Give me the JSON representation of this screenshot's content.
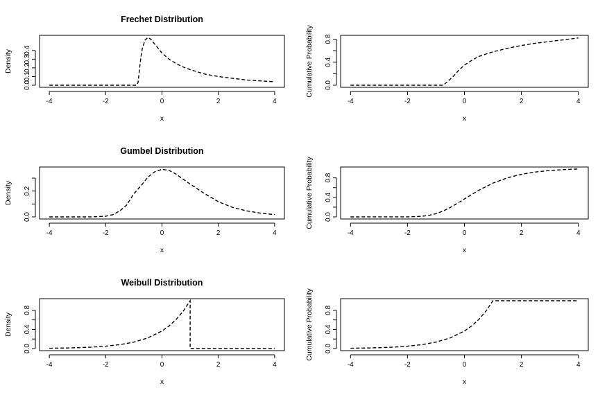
{
  "chart_data": [
    {
      "type": "line",
      "title": "Frechet Distribution",
      "xlabel": "x",
      "ylabel": "Density",
      "xlim": [
        -4,
        4
      ],
      "ylim": [
        0,
        0.55
      ],
      "x_ticks": [
        "-4",
        "-2",
        "0",
        "2",
        "4"
      ],
      "y_ticks": [
        "0.0",
        "0.1",
        "0.2",
        "0.3",
        "0.4"
      ],
      "x_ticks_values": [
        -4,
        -2,
        0,
        2,
        4
      ],
      "y_ticks_values": [
        0,
        0.1,
        0.2,
        0.3,
        0.4
      ],
      "series": [
        {
          "x": [
            -4,
            -0.9,
            -0.85,
            -0.8,
            -0.75,
            -0.7,
            -0.6,
            -0.5,
            -0.4,
            -0.3,
            -0.2,
            -0.1,
            0,
            0.25,
            0.5,
            0.75,
            1,
            1.5,
            2,
            2.5,
            3,
            3.5,
            4
          ],
          "y": [
            0,
            0,
            0.03,
            0.18,
            0.32,
            0.42,
            0.52,
            0.55,
            0.53,
            0.49,
            0.45,
            0.41,
            0.37,
            0.3,
            0.25,
            0.21,
            0.18,
            0.13,
            0.1,
            0.08,
            0.06,
            0.05,
            0.04
          ]
        }
      ]
    },
    {
      "type": "line",
      "title": "",
      "xlabel": "x",
      "ylabel": "Cumulative Probability",
      "xlim": [
        -4,
        4
      ],
      "ylim": [
        0,
        0.83
      ],
      "x_ticks": [
        "-4",
        "-2",
        "0",
        "2",
        "4"
      ],
      "y_ticks": [
        "0.0",
        "0.4",
        "0.8"
      ],
      "y_ticks_minor": [
        0.2,
        0.6
      ],
      "x_ticks_values": [
        -4,
        -2,
        0,
        2,
        4
      ],
      "y_ticks_values": [
        0,
        0.4,
        0.8
      ],
      "series": [
        {
          "x": [
            -4,
            -0.75,
            -0.6,
            -0.4,
            -0.2,
            0,
            0.25,
            0.5,
            1,
            1.5,
            2,
            2.5,
            3,
            3.5,
            4
          ],
          "y": [
            0,
            0,
            0.06,
            0.15,
            0.26,
            0.35,
            0.43,
            0.5,
            0.58,
            0.64,
            0.69,
            0.73,
            0.76,
            0.79,
            0.82
          ]
        }
      ]
    },
    {
      "type": "line",
      "title": "Gumbel Distribution",
      "xlabel": "x",
      "ylabel": "Density",
      "xlim": [
        -4,
        4
      ],
      "ylim": [
        0,
        0.37
      ],
      "x_ticks": [
        "-4",
        "-2",
        "0",
        "2",
        "4"
      ],
      "y_ticks": [
        "0.0",
        "0.2"
      ],
      "y_ticks_minor": [
        0.1,
        0.3
      ],
      "x_ticks_values": [
        -4,
        -2,
        0,
        2,
        4
      ],
      "y_ticks_values": [
        0,
        0.2
      ],
      "series": [
        {
          "x": [
            -4,
            -3,
            -2.5,
            -2,
            -1.75,
            -1.5,
            -1.25,
            -1,
            -0.75,
            -0.5,
            -0.25,
            0,
            0.25,
            0.5,
            0.75,
            1,
            1.5,
            2,
            2.5,
            3,
            3.5,
            4
          ],
          "y": [
            0,
            0,
            0.0001,
            0.005,
            0.017,
            0.046,
            0.093,
            0.179,
            0.24,
            0.308,
            0.35,
            0.368,
            0.36,
            0.331,
            0.292,
            0.254,
            0.182,
            0.118,
            0.074,
            0.047,
            0.029,
            0.018
          ]
        }
      ]
    },
    {
      "type": "line",
      "title": "",
      "xlabel": "x",
      "ylabel": "Cumulative Probability",
      "xlim": [
        -4,
        4
      ],
      "ylim": [
        0,
        0.98
      ],
      "x_ticks": [
        "-4",
        "-2",
        "0",
        "2",
        "4"
      ],
      "y_ticks": [
        "0.0",
        "0.4",
        "0.8"
      ],
      "y_ticks_minor": [
        0.2,
        0.6
      ],
      "x_ticks_values": [
        -4,
        -2,
        0,
        2,
        4
      ],
      "y_ticks_values": [
        0,
        0.4,
        0.8
      ],
      "series": [
        {
          "x": [
            -4,
            -2,
            -1.5,
            -1.25,
            -1,
            -0.75,
            -0.5,
            -0.25,
            0,
            0.5,
            1,
            1.5,
            2,
            2.5,
            3,
            3.5,
            4
          ],
          "y": [
            0,
            0.001,
            0.012,
            0.031,
            0.066,
            0.12,
            0.192,
            0.278,
            0.368,
            0.545,
            0.692,
            0.8,
            0.873,
            0.921,
            0.951,
            0.97,
            0.982
          ]
        }
      ]
    },
    {
      "type": "line",
      "title": "Weibull Distribution",
      "xlabel": "x",
      "ylabel": "Density",
      "xlim": [
        -4,
        4
      ],
      "ylim": [
        0,
        1
      ],
      "x_ticks": [
        "-4",
        "-2",
        "0",
        "2",
        "4"
      ],
      "y_ticks": [
        "0.0",
        "0.4",
        "0.8"
      ],
      "y_ticks_minor": [
        0.2,
        0.6
      ],
      "x_ticks_values": [
        -4,
        -2,
        0,
        2,
        4
      ],
      "y_ticks_values": [
        0,
        0.4,
        0.8
      ],
      "series": [
        {
          "x": [
            -4,
            -3.5,
            -3,
            -2.5,
            -2,
            -1.5,
            -1,
            -0.5,
            0,
            0.25,
            0.5,
            0.75,
            1,
            1,
            2,
            3,
            4
          ],
          "y": [
            0.007,
            0.011,
            0.018,
            0.03,
            0.05,
            0.082,
            0.135,
            0.223,
            0.368,
            0.472,
            0.607,
            0.779,
            1.0,
            0,
            0,
            0,
            0
          ]
        }
      ]
    },
    {
      "type": "line",
      "title": "",
      "xlabel": "x",
      "ylabel": "Cumulative Probability",
      "xlim": [
        -4,
        4
      ],
      "ylim": [
        0,
        1
      ],
      "x_ticks": [
        "-4",
        "-2",
        "0",
        "2",
        "4"
      ],
      "y_ticks": [
        "0.0",
        "0.4",
        "0.8"
      ],
      "y_ticks_minor": [
        0.2,
        0.6
      ],
      "x_ticks_values": [
        -4,
        -2,
        0,
        2,
        4
      ],
      "y_ticks_values": [
        0,
        0.4,
        0.8
      ],
      "series": [
        {
          "x": [
            -4,
            -3.5,
            -3,
            -2.5,
            -2,
            -1.5,
            -1,
            -0.5,
            0,
            0.25,
            0.5,
            0.75,
            1,
            2,
            3,
            4
          ],
          "y": [
            0.007,
            0.011,
            0.018,
            0.03,
            0.05,
            0.082,
            0.135,
            0.223,
            0.368,
            0.472,
            0.607,
            0.779,
            1.0,
            1.0,
            1.0,
            1.0
          ]
        }
      ]
    }
  ]
}
